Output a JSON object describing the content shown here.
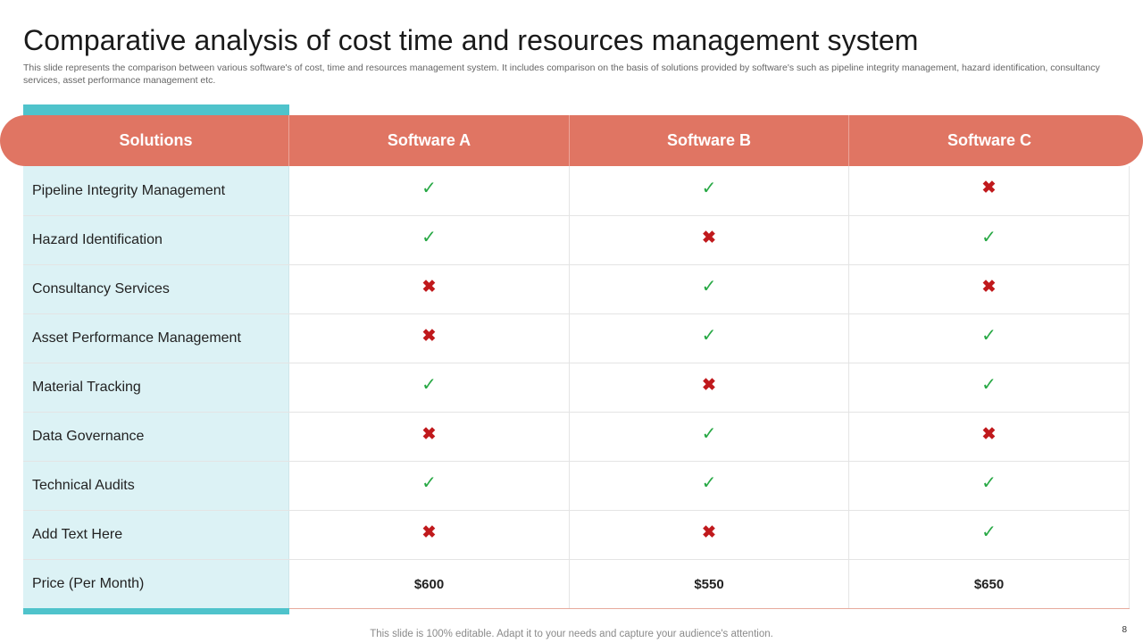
{
  "slide": {
    "title": "Comparative analysis of cost time and resources management system",
    "subtitle": "This slide represents the comparison between various software's of cost, time and resources management system. It includes comparison on the basis of solutions provided by software's such as pipeline integrity management, hazard identification, consultancy services, asset performance management etc.",
    "footer": "This slide is 100% editable. Adapt it to your needs and capture your audience's attention.",
    "page_number": "8"
  },
  "table": {
    "headers": [
      "Solutions",
      "Software A",
      "Software B",
      "Software C"
    ],
    "symbols": {
      "yes": "✓",
      "no": "✖"
    },
    "rows": [
      {
        "label": "Pipeline Integrity  Management",
        "values": [
          "yes",
          "yes",
          "no"
        ]
      },
      {
        "label": "Hazard Identification",
        "values": [
          "yes",
          "no",
          "yes"
        ]
      },
      {
        "label": "Consultancy  Services",
        "values": [
          "no",
          "yes",
          "no"
        ]
      },
      {
        "label": "Asset Performance Management",
        "values": [
          "no",
          "yes",
          "yes"
        ]
      },
      {
        "label": "Material Tracking",
        "values": [
          "yes",
          "no",
          "yes"
        ]
      },
      {
        "label": "Data Governance",
        "values": [
          "no",
          "yes",
          "no"
        ]
      },
      {
        "label": "Technical Audits",
        "values": [
          "yes",
          "yes",
          "yes"
        ]
      },
      {
        "label": "Add Text Here",
        "values": [
          "no",
          "no",
          "yes"
        ]
      }
    ],
    "price_row": {
      "label": "Price (Per Month)",
      "values": [
        "$600",
        "$550",
        "$650"
      ]
    }
  },
  "colors": {
    "header_bg": "#e07563",
    "accent_teal": "#4fc3cb",
    "label_bg": "#dcf2f5",
    "check": "#27a844",
    "cross": "#c0191c"
  }
}
